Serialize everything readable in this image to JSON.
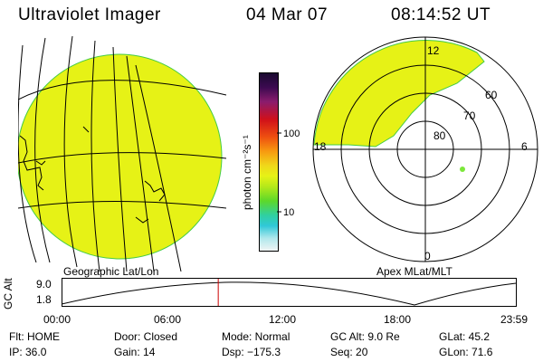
{
  "header": {
    "title": "Ultraviolet Imager",
    "date": "04 Mar 07",
    "time": "08:14:52 UT"
  },
  "colorbar": {
    "unit_label": "photon cm⁻²s⁻¹",
    "ticks": [
      "100",
      "10"
    ]
  },
  "geo_panel": {
    "label": "Geographic Lat/Lon"
  },
  "apex_panel": {
    "label": "Apex MLat/MLT",
    "mlt_labels": [
      "12",
      "18",
      "6",
      "0"
    ],
    "lat_labels": [
      "60",
      "70",
      "80"
    ]
  },
  "orbit_plot": {
    "ylabel": "GC Alt",
    "y_ticks": [
      "9.0",
      "1.8"
    ],
    "x_ticks": [
      "00:00",
      "06:00",
      "12:00",
      "18:00",
      "23:59"
    ],
    "current_time_hours": 8.247
  },
  "status": {
    "row1": [
      "Flt: HOME",
      "Door: Closed",
      "Mode: Normal",
      "GC Alt: 9.0 Re",
      "GLat: 45.2"
    ],
    "row2": [
      "IP: 36.0",
      "Gain: 14",
      "Dsp: −175.3",
      "Seq: 20",
      "GLon: 71.6"
    ]
  },
  "colors": {
    "aurora_fill": "#e6f216",
    "edge": "#44cc44",
    "marker": "#cc0000"
  }
}
